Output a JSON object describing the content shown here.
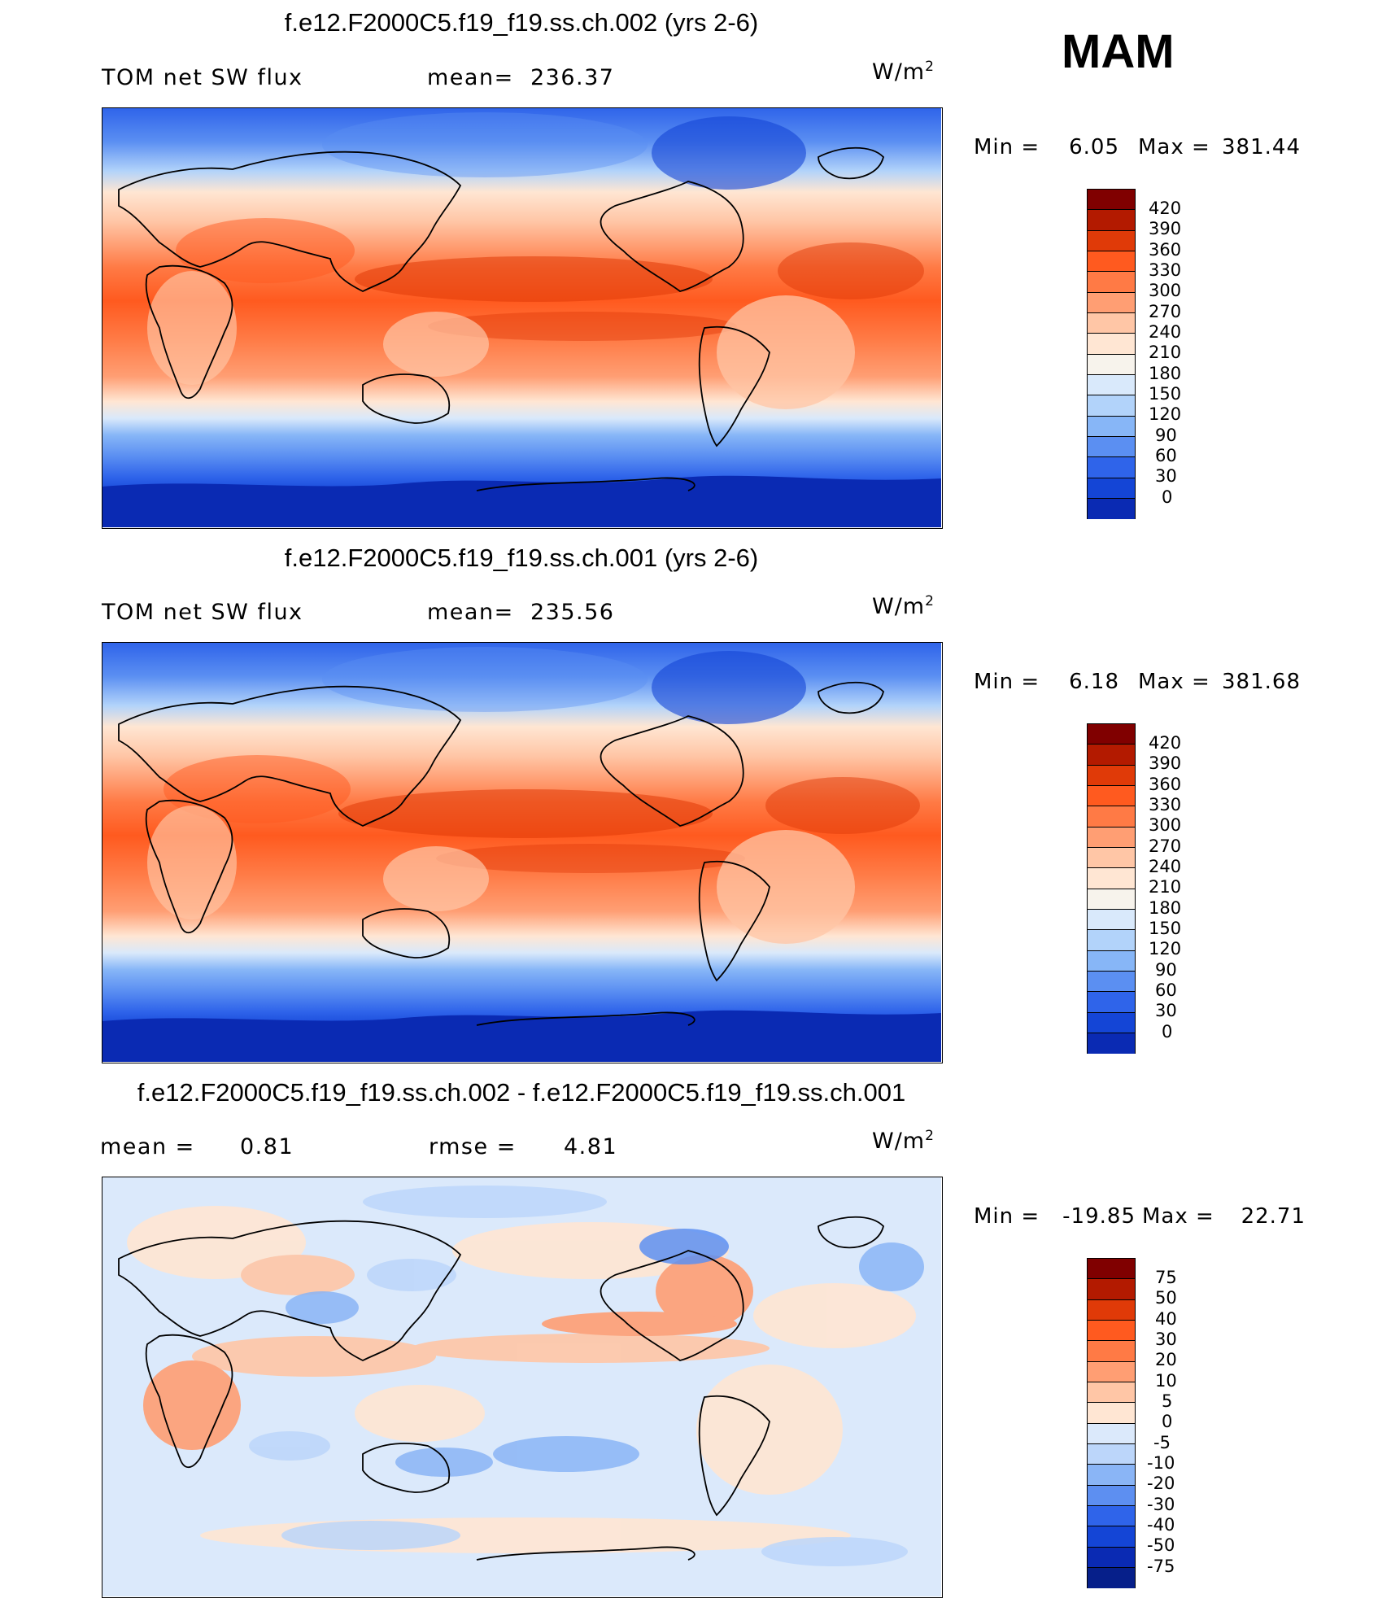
{
  "season": "MAM",
  "units": "W/m",
  "units_exp": "2",
  "panels": [
    {
      "title": "f.e12.F2000C5.f19_f19.ss.ch.002 (yrs 2-6)",
      "left_label": "TOM net SW flux",
      "stat_label": "mean=",
      "stat_value": "236.37",
      "min_label": "Min =",
      "min_value": "6.05",
      "max_label": "Max =",
      "max_value": "381.44",
      "colorbar": {
        "labels": [
          "420",
          "390",
          "360",
          "330",
          "300",
          "270",
          "240",
          "210",
          "180",
          "150",
          "120",
          "90",
          "60",
          "30",
          "0"
        ],
        "colors": [
          "#800000",
          "#b31a00",
          "#e03a08",
          "#ff5a1f",
          "#ff7a45",
          "#ff9e73",
          "#ffc6a6",
          "#ffe6d3",
          "#f7f3ec",
          "#d9e9fb",
          "#b2d3fa",
          "#87b6f7",
          "#5b8ff2",
          "#2f64ea",
          "#1445d6",
          "#0a2ab3"
        ]
      }
    },
    {
      "title": "f.e12.F2000C5.f19_f19.ss.ch.001 (yrs 2-6)",
      "left_label": "TOM net SW flux",
      "stat_label": "mean=",
      "stat_value": "235.56",
      "min_label": "Min =",
      "min_value": "6.18",
      "max_label": "Max =",
      "max_value": "381.68",
      "colorbar": {
        "labels": [
          "420",
          "390",
          "360",
          "330",
          "300",
          "270",
          "240",
          "210",
          "180",
          "150",
          "120",
          "90",
          "60",
          "30",
          "0"
        ],
        "colors": [
          "#800000",
          "#b31a00",
          "#e03a08",
          "#ff5a1f",
          "#ff7a45",
          "#ff9e73",
          "#ffc6a6",
          "#ffe6d3",
          "#f7f3ec",
          "#d9e9fb",
          "#b2d3fa",
          "#87b6f7",
          "#5b8ff2",
          "#2f64ea",
          "#1445d6",
          "#0a2ab3"
        ]
      }
    },
    {
      "title": "f.e12.F2000C5.f19_f19.ss.ch.002 - f.e12.F2000C5.f19_f19.ss.ch.001",
      "left_label": "mean =",
      "left_value": "0.81",
      "stat_label": "rmse =",
      "stat_value": "4.81",
      "min_label": "Min =",
      "min_value": "-19.85",
      "max_label": "Max =",
      "max_value": "22.71",
      "colorbar": {
        "labels": [
          "75",
          "50",
          "40",
          "30",
          "20",
          "10",
          "5",
          "0",
          "-5",
          "-10",
          "-20",
          "-30",
          "-40",
          "-50",
          "-75"
        ],
        "colors": [
          "#800000",
          "#b31a00",
          "#e03a08",
          "#ff5a1f",
          "#ff7a45",
          "#ff9e73",
          "#ffc6a6",
          "#ffe6d3",
          "#dbe9fb",
          "#bcd6fa",
          "#8ab5f6",
          "#5d8ff1",
          "#2f64ea",
          "#1445d6",
          "#0a2ab3",
          "#061f8a"
        ]
      }
    }
  ]
}
